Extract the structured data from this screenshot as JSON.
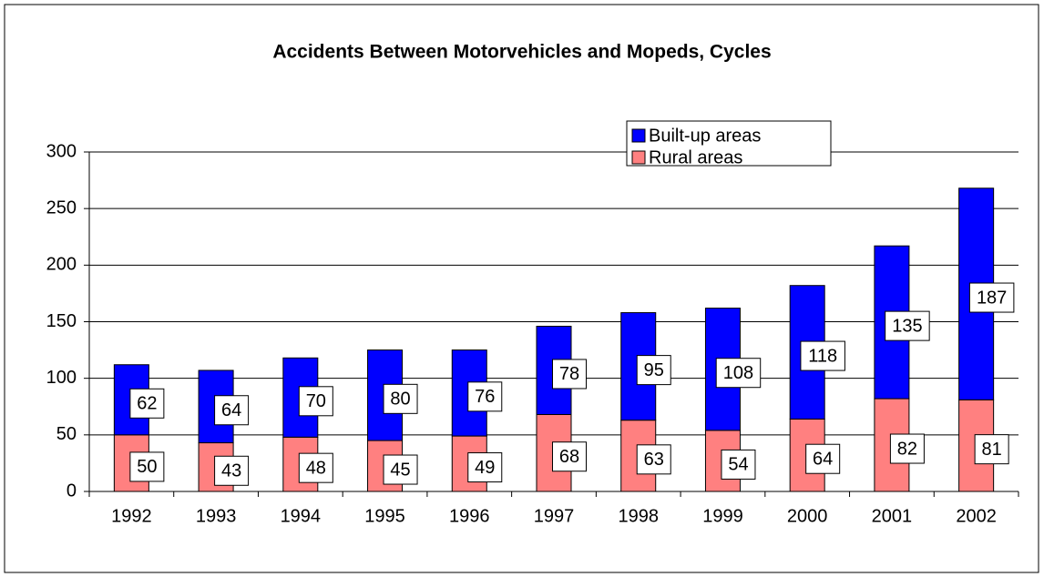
{
  "chart_data": {
    "type": "stacked_bar",
    "title": "Accidents Between Motorvehicles and Mopeds, Cycles",
    "categories": [
      "1992",
      "1993",
      "1994",
      "1995",
      "1996",
      "1997",
      "1998",
      "1999",
      "2000",
      "2001",
      "2002"
    ],
    "series": [
      {
        "name": "Rural areas",
        "color": "#ff8080",
        "values": [
          50,
          43,
          48,
          45,
          49,
          68,
          63,
          54,
          64,
          82,
          81
        ]
      },
      {
        "name": "Built-up areas",
        "color": "#0000ff",
        "values": [
          62,
          64,
          70,
          80,
          76,
          78,
          95,
          108,
          118,
          135,
          187
        ]
      }
    ],
    "ylim": [
      0,
      300
    ],
    "yticks": [
      0,
      50,
      100,
      150,
      200,
      250,
      300
    ],
    "grid": true,
    "legend": "top-right"
  }
}
